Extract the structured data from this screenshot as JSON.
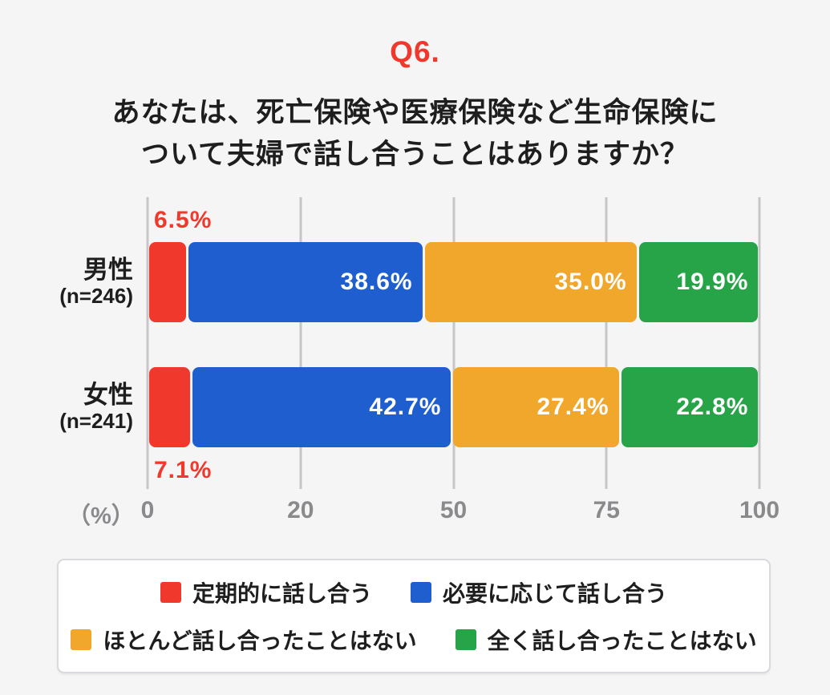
{
  "header": {
    "qnum": "Q6.",
    "question_line1": "あなたは、死亡保険や医療保険など生命保険に",
    "question_line2": "ついて夫婦で話し合うことはありますか？",
    "qnum_color": "#f0392c"
  },
  "chart_data": {
    "type": "bar",
    "orientation": "horizontal",
    "stacked": true,
    "title": "あなたは、死亡保険や医療保険など生命保険について夫婦で話し合うことはありますか？",
    "unit_label": "（%）",
    "axis_range": [
      0,
      100
    ],
    "x_tick_labels": [
      "0",
      "20",
      "50",
      "75",
      "100"
    ],
    "grid": true,
    "categories": [
      "男性",
      "女性"
    ],
    "category_sublabels": [
      "(n=246)",
      "(n=241)"
    ],
    "series": [
      {
        "name": "定期的に話し合う",
        "color": "#f0392c",
        "values": [
          6.5,
          7.1
        ]
      },
      {
        "name": "必要に応じて話し合う",
        "color": "#1e5ecf",
        "values": [
          38.6,
          42.7
        ]
      },
      {
        "name": "ほとんど話し合ったことはない",
        "color": "#f0a72b",
        "values": [
          35.0,
          27.4
        ]
      },
      {
        "name": "全く話し合ったことはない",
        "color": "#27a348",
        "values": [
          19.9,
          22.8
        ]
      }
    ],
    "value_labels": [
      [
        "6.5%",
        "38.6%",
        "35.0%",
        "19.9%"
      ],
      [
        "7.1%",
        "42.7%",
        "27.4%",
        "22.8%"
      ]
    ],
    "first_series_label_outside": true,
    "outside_label_color": "#f0392c",
    "legend_position": "bottom"
  },
  "legend": {
    "rows": [
      [
        0,
        1
      ],
      [
        2,
        3
      ]
    ]
  },
  "colors": {
    "background": "#f5f5f6",
    "text": "#1e1e1e",
    "axis_text": "#8a8a8d",
    "gridline": "#c6c6c8",
    "legend_border": "#d9d9de",
    "legend_bg": "#ffffff"
  }
}
